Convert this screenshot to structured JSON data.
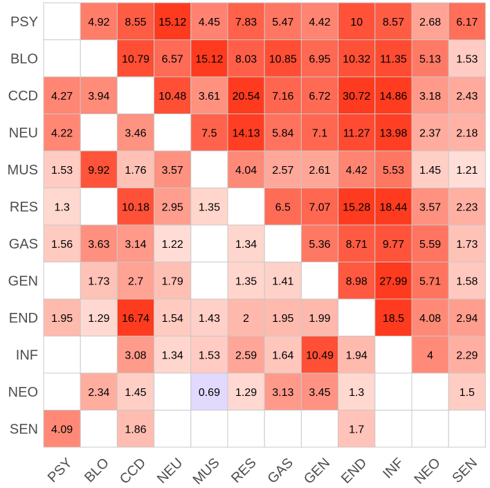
{
  "chart_data": {
    "type": "heatmap",
    "rows": [
      "PSY",
      "BLO",
      "CCD",
      "NEU",
      "MUS",
      "RES",
      "GAS",
      "GEN",
      "END",
      "INF",
      "NEO",
      "SEN"
    ],
    "columns": [
      "PSY",
      "BLO",
      "CCD",
      "NEU",
      "MUS",
      "RES",
      "GAS",
      "GEN",
      "END",
      "INF",
      "NEO",
      "SEN"
    ],
    "values": [
      [
        null,
        4.92,
        8.55,
        15.12,
        4.45,
        7.83,
        5.47,
        4.42,
        10,
        8.57,
        2.68,
        6.17
      ],
      [
        null,
        null,
        10.79,
        6.57,
        15.12,
        8.03,
        10.85,
        6.95,
        10.32,
        11.35,
        5.13,
        1.53
      ],
      [
        4.27,
        3.94,
        null,
        10.48,
        3.61,
        20.54,
        7.16,
        6.72,
        30.72,
        14.86,
        3.18,
        2.43
      ],
      [
        4.22,
        null,
        3.46,
        null,
        7.5,
        14.13,
        5.84,
        7.1,
        11.27,
        13.98,
        2.37,
        2.18
      ],
      [
        1.53,
        9.92,
        1.76,
        3.57,
        null,
        4.04,
        2.57,
        2.61,
        4.42,
        5.53,
        1.45,
        1.21
      ],
      [
        1.3,
        null,
        10.18,
        2.95,
        1.35,
        null,
        6.5,
        7.07,
        15.28,
        18.44,
        3.57,
        2.23
      ],
      [
        1.56,
        3.63,
        3.14,
        1.22,
        null,
        1.34,
        null,
        5.36,
        8.71,
        9.77,
        5.59,
        1.73
      ],
      [
        null,
        1.73,
        2.7,
        1.79,
        null,
        1.35,
        1.41,
        null,
        8.98,
        27.99,
        5.71,
        1.58
      ],
      [
        1.95,
        1.29,
        16.74,
        1.54,
        1.43,
        2,
        1.95,
        1.99,
        null,
        18.5,
        4.08,
        2.94
      ],
      [
        null,
        null,
        3.08,
        1.34,
        1.53,
        2.59,
        1.64,
        10.49,
        1.94,
        null,
        4,
        2.29
      ],
      [
        null,
        2.34,
        1.45,
        null,
        0.69,
        1.29,
        3.13,
        3.45,
        1.3,
        null,
        null,
        1.5
      ],
      [
        4.09,
        null,
        1.86,
        null,
        null,
        null,
        null,
        null,
        1.7,
        null,
        null,
        null
      ]
    ],
    "title": "",
    "xlabel": "",
    "ylabel": "",
    "legend": "none"
  },
  "colors": {
    "high": "#ff3b1f",
    "low_above_one": "#fff1ec",
    "below_one": "#e2d9ff",
    "empty": "#ffffff",
    "grid": "#c8c8c8",
    "axis_text": "#4d4d4d"
  }
}
